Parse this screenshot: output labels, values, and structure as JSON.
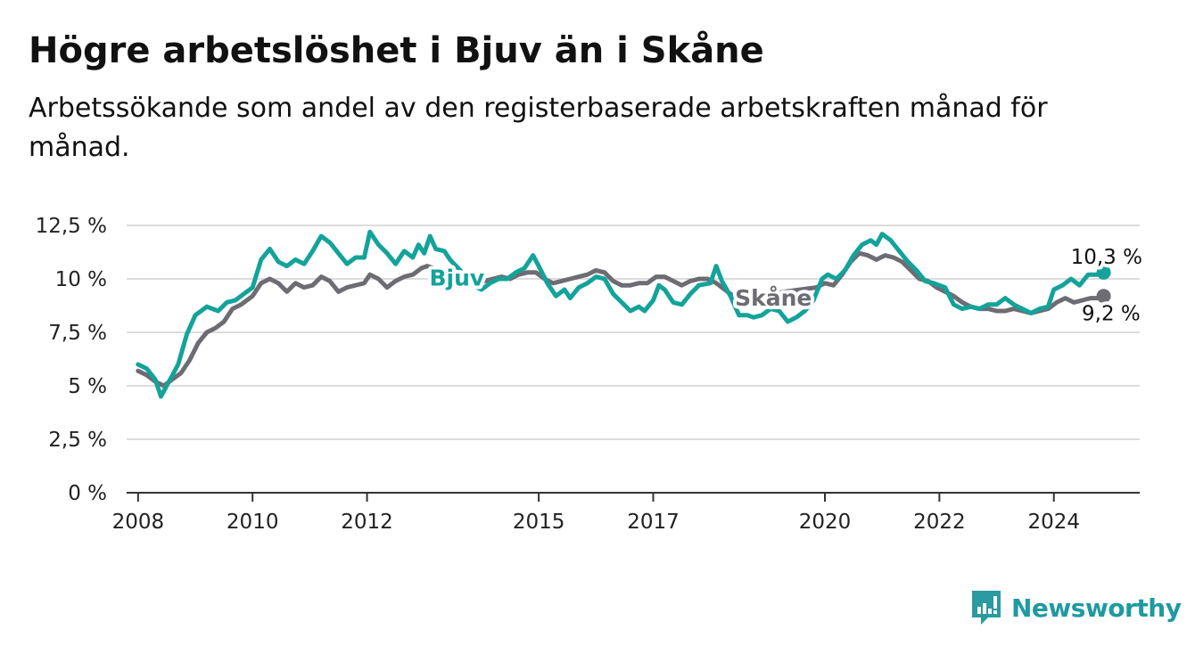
{
  "title": "Högre arbetslöshet i Bjuv än i Skåne",
  "subtitle": "Arbetssökande som andel av den registerbaserade arbetskraften månad för månad.",
  "brand": {
    "name": "Newsworthy",
    "icon": "newsworthy-logo-icon",
    "color": "#2a9ba0"
  },
  "colors": {
    "bjuv": "#13a39a",
    "skane": "#6e6c73",
    "grid": "#dcdcdc",
    "axis": "#333333"
  },
  "chart_data": {
    "type": "line",
    "title": "Högre arbetslöshet i Bjuv än i Skåne",
    "subtitle": "Arbetssökande som andel av den registerbaserade arbetskraften månad för månad.",
    "xlabel": "",
    "ylabel": "",
    "x_range": [
      2007.8,
      2025.5
    ],
    "ylim": [
      0,
      12.5
    ],
    "y_ticks": [
      {
        "value": 0,
        "label": "0 %"
      },
      {
        "value": 2.5,
        "label": "2,5 %"
      },
      {
        "value": 5,
        "label": "5 %"
      },
      {
        "value": 7.5,
        "label": "7,5 %"
      },
      {
        "value": 10,
        "label": "10 %"
      },
      {
        "value": 12.5,
        "label": "12,5 %"
      }
    ],
    "x_ticks": [
      {
        "value": 2008,
        "label": "2008"
      },
      {
        "value": 2010,
        "label": "2010"
      },
      {
        "value": 2012,
        "label": "2012"
      },
      {
        "value": 2015,
        "label": "2015"
      },
      {
        "value": 2017,
        "label": "2017"
      },
      {
        "value": 2020,
        "label": "2020"
      },
      {
        "value": 2022,
        "label": "2022"
      },
      {
        "value": 2024,
        "label": "2024"
      }
    ],
    "grid": true,
    "legend": "inline labels",
    "series": [
      {
        "name": "Bjuv",
        "end_label": "10,3 %",
        "points": [
          [
            2008.0,
            6.0
          ],
          [
            2008.15,
            5.8
          ],
          [
            2008.3,
            5.3
          ],
          [
            2008.4,
            4.5
          ],
          [
            2008.5,
            5.0
          ],
          [
            2008.7,
            6.0
          ],
          [
            2008.85,
            7.4
          ],
          [
            2009.0,
            8.3
          ],
          [
            2009.2,
            8.7
          ],
          [
            2009.4,
            8.5
          ],
          [
            2009.55,
            8.9
          ],
          [
            2009.7,
            9.0
          ],
          [
            2009.85,
            9.3
          ],
          [
            2010.0,
            9.6
          ],
          [
            2010.15,
            10.9
          ],
          [
            2010.3,
            11.4
          ],
          [
            2010.45,
            10.8
          ],
          [
            2010.6,
            10.6
          ],
          [
            2010.75,
            10.9
          ],
          [
            2010.9,
            10.7
          ],
          [
            2011.05,
            11.3
          ],
          [
            2011.2,
            12.0
          ],
          [
            2011.35,
            11.7
          ],
          [
            2011.5,
            11.2
          ],
          [
            2011.65,
            10.7
          ],
          [
            2011.8,
            11.0
          ],
          [
            2011.95,
            11.0
          ],
          [
            2012.05,
            12.2
          ],
          [
            2012.2,
            11.6
          ],
          [
            2012.35,
            11.2
          ],
          [
            2012.5,
            10.7
          ],
          [
            2012.65,
            11.3
          ],
          [
            2012.8,
            11.0
          ],
          [
            2012.9,
            11.6
          ],
          [
            2013.0,
            11.2
          ],
          [
            2013.1,
            12.0
          ],
          [
            2013.2,
            11.4
          ],
          [
            2013.35,
            11.3
          ],
          [
            2013.45,
            10.9
          ],
          [
            2013.7,
            10.2
          ],
          [
            2013.85,
            9.7
          ],
          [
            2014.0,
            9.5
          ],
          [
            2014.15,
            9.8
          ],
          [
            2014.3,
            10.0
          ],
          [
            2014.45,
            10.0
          ],
          [
            2014.6,
            10.3
          ],
          [
            2014.75,
            10.5
          ],
          [
            2014.9,
            11.1
          ],
          [
            2015.0,
            10.6
          ],
          [
            2015.15,
            9.8
          ],
          [
            2015.3,
            9.2
          ],
          [
            2015.45,
            9.5
          ],
          [
            2015.55,
            9.1
          ],
          [
            2015.7,
            9.6
          ],
          [
            2015.85,
            9.8
          ],
          [
            2016.0,
            10.1
          ],
          [
            2016.15,
            10.0
          ],
          [
            2016.3,
            9.3
          ],
          [
            2016.45,
            8.9
          ],
          [
            2016.6,
            8.5
          ],
          [
            2016.75,
            8.7
          ],
          [
            2016.85,
            8.5
          ],
          [
            2017.0,
            9.0
          ],
          [
            2017.1,
            9.7
          ],
          [
            2017.2,
            9.5
          ],
          [
            2017.35,
            8.9
          ],
          [
            2017.5,
            8.8
          ],
          [
            2017.65,
            9.3
          ],
          [
            2017.8,
            9.7
          ],
          [
            2018.0,
            9.8
          ],
          [
            2018.1,
            10.6
          ],
          [
            2018.2,
            9.9
          ],
          [
            2018.35,
            9.2
          ],
          [
            2018.5,
            8.3
          ],
          [
            2018.65,
            8.3
          ],
          [
            2018.75,
            8.2
          ],
          [
            2018.9,
            8.3
          ],
          [
            2019.05,
            8.6
          ],
          [
            2019.2,
            8.5
          ],
          [
            2019.35,
            8.0
          ],
          [
            2019.5,
            8.2
          ],
          [
            2019.65,
            8.5
          ],
          [
            2019.8,
            9.0
          ],
          [
            2019.95,
            10.0
          ],
          [
            2020.05,
            10.2
          ],
          [
            2020.2,
            10.0
          ],
          [
            2020.35,
            10.4
          ],
          [
            2020.5,
            11.1
          ],
          [
            2020.65,
            11.6
          ],
          [
            2020.8,
            11.8
          ],
          [
            2020.9,
            11.6
          ],
          [
            2021.0,
            12.1
          ],
          [
            2021.15,
            11.8
          ],
          [
            2021.3,
            11.3
          ],
          [
            2021.45,
            10.8
          ],
          [
            2021.6,
            10.4
          ],
          [
            2021.75,
            9.9
          ],
          [
            2021.9,
            9.8
          ],
          [
            2022.0,
            9.7
          ],
          [
            2022.1,
            9.6
          ],
          [
            2022.25,
            8.8
          ],
          [
            2022.4,
            8.6
          ],
          [
            2022.55,
            8.7
          ],
          [
            2022.7,
            8.6
          ],
          [
            2022.85,
            8.8
          ],
          [
            2023.0,
            8.8
          ],
          [
            2023.15,
            9.1
          ],
          [
            2023.3,
            8.8
          ],
          [
            2023.45,
            8.6
          ],
          [
            2023.6,
            8.4
          ],
          [
            2023.75,
            8.6
          ],
          [
            2023.9,
            8.7
          ],
          [
            2024.0,
            9.5
          ],
          [
            2024.15,
            9.7
          ],
          [
            2024.3,
            10.0
          ],
          [
            2024.45,
            9.7
          ],
          [
            2024.6,
            10.2
          ],
          [
            2024.75,
            10.2
          ],
          [
            2024.87,
            10.3
          ]
        ]
      },
      {
        "name": "Skåne",
        "end_label": "9,2 %",
        "points": [
          [
            2008.0,
            5.7
          ],
          [
            2008.15,
            5.5
          ],
          [
            2008.3,
            5.2
          ],
          [
            2008.45,
            5.0
          ],
          [
            2008.6,
            5.3
          ],
          [
            2008.75,
            5.6
          ],
          [
            2008.9,
            6.2
          ],
          [
            2009.05,
            7.0
          ],
          [
            2009.2,
            7.5
          ],
          [
            2009.35,
            7.7
          ],
          [
            2009.5,
            8.0
          ],
          [
            2009.65,
            8.6
          ],
          [
            2009.8,
            8.8
          ],
          [
            2010.0,
            9.2
          ],
          [
            2010.15,
            9.8
          ],
          [
            2010.3,
            10.0
          ],
          [
            2010.45,
            9.8
          ],
          [
            2010.6,
            9.4
          ],
          [
            2010.75,
            9.8
          ],
          [
            2010.9,
            9.6
          ],
          [
            2011.05,
            9.7
          ],
          [
            2011.2,
            10.1
          ],
          [
            2011.35,
            9.9
          ],
          [
            2011.5,
            9.4
          ],
          [
            2011.65,
            9.6
          ],
          [
            2011.8,
            9.7
          ],
          [
            2011.95,
            9.8
          ],
          [
            2012.05,
            10.2
          ],
          [
            2012.2,
            10.0
          ],
          [
            2012.35,
            9.6
          ],
          [
            2012.5,
            9.9
          ],
          [
            2012.65,
            10.1
          ],
          [
            2012.8,
            10.2
          ],
          [
            2012.95,
            10.5
          ],
          [
            2013.05,
            10.6
          ],
          [
            2013.9,
            9.9
          ],
          [
            2014.05,
            9.9
          ],
          [
            2014.2,
            10.0
          ],
          [
            2014.35,
            10.1
          ],
          [
            2014.5,
            10.0
          ],
          [
            2014.65,
            10.2
          ],
          [
            2014.8,
            10.3
          ],
          [
            2014.95,
            10.3
          ],
          [
            2015.1,
            10.0
          ],
          [
            2015.25,
            9.8
          ],
          [
            2015.4,
            9.9
          ],
          [
            2015.55,
            10.0
          ],
          [
            2015.7,
            10.1
          ],
          [
            2015.85,
            10.2
          ],
          [
            2016.0,
            10.4
          ],
          [
            2016.15,
            10.3
          ],
          [
            2016.3,
            9.9
          ],
          [
            2016.45,
            9.7
          ],
          [
            2016.6,
            9.7
          ],
          [
            2016.75,
            9.8
          ],
          [
            2016.9,
            9.8
          ],
          [
            2017.05,
            10.1
          ],
          [
            2017.2,
            10.1
          ],
          [
            2017.35,
            9.9
          ],
          [
            2017.5,
            9.7
          ],
          [
            2017.65,
            9.9
          ],
          [
            2017.8,
            10.0
          ],
          [
            2017.95,
            10.0
          ],
          [
            2018.1,
            9.8
          ],
          [
            2018.25,
            9.5
          ],
          [
            2018.4,
            9.2
          ],
          [
            2018.45,
            9.1
          ],
          [
            2019.85,
            9.6
          ],
          [
            2020.0,
            9.8
          ],
          [
            2020.15,
            9.7
          ],
          [
            2020.3,
            10.2
          ],
          [
            2020.45,
            10.8
          ],
          [
            2020.6,
            11.2
          ],
          [
            2020.75,
            11.1
          ],
          [
            2020.9,
            10.9
          ],
          [
            2021.05,
            11.1
          ],
          [
            2021.2,
            11.0
          ],
          [
            2021.35,
            10.8
          ],
          [
            2021.5,
            10.4
          ],
          [
            2021.65,
            10.0
          ],
          [
            2021.8,
            9.9
          ],
          [
            2021.95,
            9.6
          ],
          [
            2022.1,
            9.4
          ],
          [
            2022.25,
            9.2
          ],
          [
            2022.4,
            8.9
          ],
          [
            2022.55,
            8.7
          ],
          [
            2022.7,
            8.6
          ],
          [
            2022.85,
            8.6
          ],
          [
            2023.0,
            8.5
          ],
          [
            2023.15,
            8.5
          ],
          [
            2023.3,
            8.6
          ],
          [
            2023.45,
            8.5
          ],
          [
            2023.6,
            8.4
          ],
          [
            2023.75,
            8.5
          ],
          [
            2023.9,
            8.6
          ],
          [
            2024.05,
            8.9
          ],
          [
            2024.2,
            9.1
          ],
          [
            2024.35,
            8.9
          ],
          [
            2024.5,
            9.0
          ],
          [
            2024.65,
            9.1
          ],
          [
            2024.8,
            9.1
          ],
          [
            2024.87,
            9.2
          ]
        ]
      }
    ],
    "annotations": [
      {
        "text": "Bjuv",
        "series": "Bjuv"
      },
      {
        "text": "Skåne",
        "series": "Skåne"
      },
      {
        "text": "10,3 %",
        "series": "Bjuv"
      },
      {
        "text": "9,2 %",
        "series": "Skåne"
      }
    ]
  }
}
